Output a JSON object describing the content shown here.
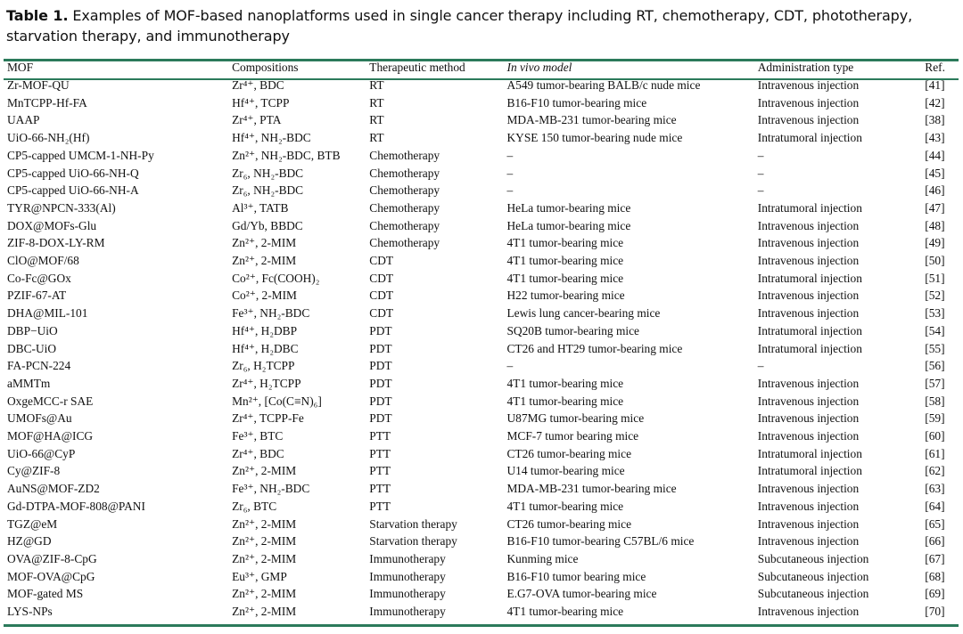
{
  "caption": {
    "label": "Table 1.",
    "text": "Examples of MOF-based nanoplatforms used in single cancer therapy including RT, chemotherapy, CDT, phototherapy, starvation therapy, and immunotherapy"
  },
  "columns": [
    "MOF",
    "Compositions",
    "Therapeutic method",
    "In vivo model",
    "Administration type",
    "Ref."
  ],
  "rows": [
    [
      "Zr-MOF-QU",
      "Zr⁴⁺, BDC",
      "RT",
      "A549 tumor-bearing BALB/c nude mice",
      "Intravenous injection",
      "[41]"
    ],
    [
      "MnTCPP-Hf-FA",
      "Hf⁴⁺, TCPP",
      "RT",
      "B16-F10 tumor-bearing mice",
      "Intravenous injection",
      "[42]"
    ],
    [
      "UAAP",
      "Zr⁴⁺, PTA",
      "RT",
      "MDA-MB-231 tumor-bearing mice",
      "Intravenous injection",
      "[38]"
    ],
    [
      "UiO-66-NH₂(Hf)",
      "Hf⁴⁺, NH₂-BDC",
      "RT",
      "KYSE 150 tumor-bearing nude mice",
      "Intratumoral injection",
      "[43]"
    ],
    [
      "CP5-capped UMCM-1-NH-Py",
      "Zn²⁺, NH₂-BDC, BTB",
      "Chemotherapy",
      "–",
      "–",
      "[44]"
    ],
    [
      "CP5-capped UiO-66-NH-Q",
      "Zr₆, NH₂-BDC",
      "Chemotherapy",
      "–",
      "–",
      "[45]"
    ],
    [
      "CP5-capped UiO-66-NH-A",
      "Zr₆, NH₂-BDC",
      "Chemotherapy",
      "–",
      "–",
      "[46]"
    ],
    [
      "TYR@NPCN-333(Al)",
      "Al³⁺, TATB",
      "Chemotherapy",
      "HeLa tumor-bearing mice",
      "Intratumoral injection",
      "[47]"
    ],
    [
      "DOX@MOFs-Glu",
      "Gd/Yb, BBDC",
      "Chemotherapy",
      "HeLa tumor-bearing mice",
      "Intravenous injection",
      "[48]"
    ],
    [
      "ZIF-8-DOX-LY-RM",
      "Zn²⁺, 2-MIM",
      "Chemotherapy",
      "4T1 tumor-bearing mice",
      "Intravenous injection",
      "[49]"
    ],
    [
      "ClO@MOF/68",
      "Zn²⁺, 2-MIM",
      "CDT",
      "4T1 tumor-bearing mice",
      "Intravenous injection",
      "[50]"
    ],
    [
      "Co-Fc@GOx",
      "Co²⁺, Fc(COOH)₂",
      "CDT",
      "4T1 tumor-bearing mice",
      "Intratumoral injection",
      "[51]"
    ],
    [
      "PZIF-67-AT",
      "Co²⁺, 2-MIM",
      "CDT",
      "H22 tumor-bearing mice",
      "Intravenous injection",
      "[52]"
    ],
    [
      "DHA@MIL-101",
      "Fe³⁺, NH₂-BDC",
      "CDT",
      "Lewis lung cancer-bearing mice",
      "Intravenous injection",
      "[53]"
    ],
    [
      "DBP−UiO",
      "Hf⁴⁺, H₂DBP",
      "PDT",
      "SQ20B tumor-bearing mice",
      "Intratumoral injection",
      "[54]"
    ],
    [
      "DBC-UiO",
      "Hf⁴⁺, H₂DBC",
      "PDT",
      "CT26 and HT29 tumor-bearing mice",
      "Intratumoral injection",
      "[55]"
    ],
    [
      "FA-PCN-224",
      "Zr₆, H₂TCPP",
      "PDT",
      "–",
      "–",
      "[56]"
    ],
    [
      "aMMTm",
      "Zr⁴⁺, H₂TCPP",
      "PDT",
      "4T1 tumor-bearing mice",
      "Intravenous injection",
      "[57]"
    ],
    [
      "OxgeMCC-r SAE",
      "Mn²⁺, [Co(C≡N)₆]",
      "PDT",
      "4T1 tumor-bearing mice",
      "Intravenous injection",
      "[58]"
    ],
    [
      "UMOFs@Au",
      "Zr⁴⁺, TCPP-Fe",
      "PDT",
      "U87MG tumor-bearing mice",
      "Intravenous injection",
      "[59]"
    ],
    [
      "MOF@HA@ICG",
      "Fe³⁺, BTC",
      "PTT",
      "MCF-7 tumor bearing mice",
      "Intravenous injection",
      "[60]"
    ],
    [
      "UiO-66@CyP",
      "Zr⁴⁺, BDC",
      "PTT",
      "CT26 tumor-bearing mice",
      "Intratumoral injection",
      "[61]"
    ],
    [
      "Cy@ZIF-8",
      "Zn²⁺, 2-MIM",
      "PTT",
      "U14 tumor-bearing mice",
      "Intratumoral injection",
      "[62]"
    ],
    [
      "AuNS@MOF-ZD2",
      "Fe³⁺, NH₂-BDC",
      "PTT",
      "MDA-MB-231 tumor-bearing mice",
      "Intravenous injection",
      "[63]"
    ],
    [
      "Gd-DTPA-MOF-808@PANI",
      "Zr₆, BTC",
      "PTT",
      "4T1 tumor-bearing mice",
      "Intravenous injection",
      "[64]"
    ],
    [
      "TGZ@eM",
      "Zn²⁺, 2-MIM",
      "Starvation therapy",
      "CT26 tumor-bearing mice",
      "Intravenous injection",
      "[65]"
    ],
    [
      "HZ@GD",
      "Zn²⁺, 2-MIM",
      "Starvation therapy",
      "B16-F10 tumor-bearing C57BL/6 mice",
      "Intravenous injection",
      "[66]"
    ],
    [
      "OVA@ZIF-8-CpG",
      "Zn²⁺, 2-MIM",
      "Immunotherapy",
      "Kunming mice",
      "Subcutaneous injection",
      "[67]"
    ],
    [
      "MOF-OVA@CpG",
      "Eu³⁺, GMP",
      "Immunotherapy",
      "B16-F10 tumor bearing mice",
      "Subcutaneous injection",
      "[68]"
    ],
    [
      "MOF-gated MS",
      "Zn²⁺, 2-MIM",
      "Immunotherapy",
      "E.G7-OVA tumor-bearing mice",
      "Subcutaneous injection",
      "[69]"
    ],
    [
      "LYS-NPs",
      "Zn²⁺, 2-MIM",
      "Immunotherapy",
      "4T1 tumor-bearing mice",
      "Intravenous injection",
      "[70]"
    ]
  ],
  "colors": {
    "rule": "#2b7a5b",
    "text": "#111111"
  }
}
